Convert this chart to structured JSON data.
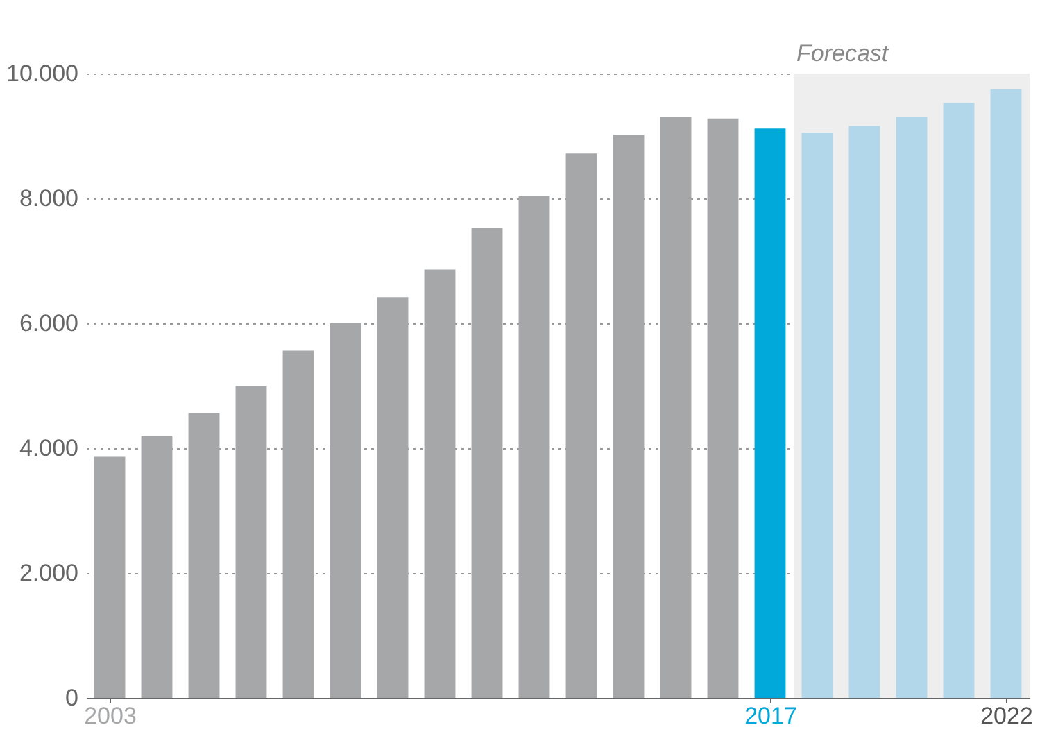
{
  "chart_data": {
    "type": "bar",
    "x": [
      2003,
      2004,
      2005,
      2006,
      2007,
      2008,
      2009,
      2010,
      2011,
      2012,
      2013,
      2014,
      2015,
      2016,
      2017,
      2018,
      2019,
      2020,
      2021,
      2022
    ],
    "values": [
      3860,
      4190,
      4560,
      5000,
      5560,
      6000,
      6420,
      6860,
      7530,
      8040,
      8720,
      9020,
      9310,
      9280,
      9120,
      9050,
      9160,
      9310,
      9530,
      9750
    ],
    "colors": [
      "#a6a7a9",
      "#a6a7a9",
      "#a6a7a9",
      "#a6a7a9",
      "#a6a7a9",
      "#a6a7a9",
      "#a6a7a9",
      "#a6a7a9",
      "#a6a7a9",
      "#a6a7a9",
      "#a6a7a9",
      "#a6a7a9",
      "#a6a7a9",
      "#a6a7a9",
      "#00a9d9",
      "#b3d7ea",
      "#b3d7ea",
      "#b3d7ea",
      "#b3d7ea",
      "#b3d7ea"
    ],
    "xlim": [
      2002.5,
      2022.5
    ],
    "xticks": [
      2003,
      2017,
      2022
    ],
    "ylim": [
      0,
      10000
    ],
    "yticks": [
      {
        "value": 0,
        "label": "0"
      },
      {
        "value": 2000,
        "label": "2.000"
      },
      {
        "value": 4000,
        "label": "4.000"
      },
      {
        "value": 6000,
        "label": "6.000"
      },
      {
        "value": 8000,
        "label": "8.000"
      },
      {
        "value": 10000,
        "label": "10.000"
      }
    ],
    "bands": [
      {
        "axis": "x",
        "from": 2017.5,
        "to": 2022.5,
        "label": "Forecast",
        "color": "#eeeeee"
      }
    ],
    "grid": "y"
  }
}
